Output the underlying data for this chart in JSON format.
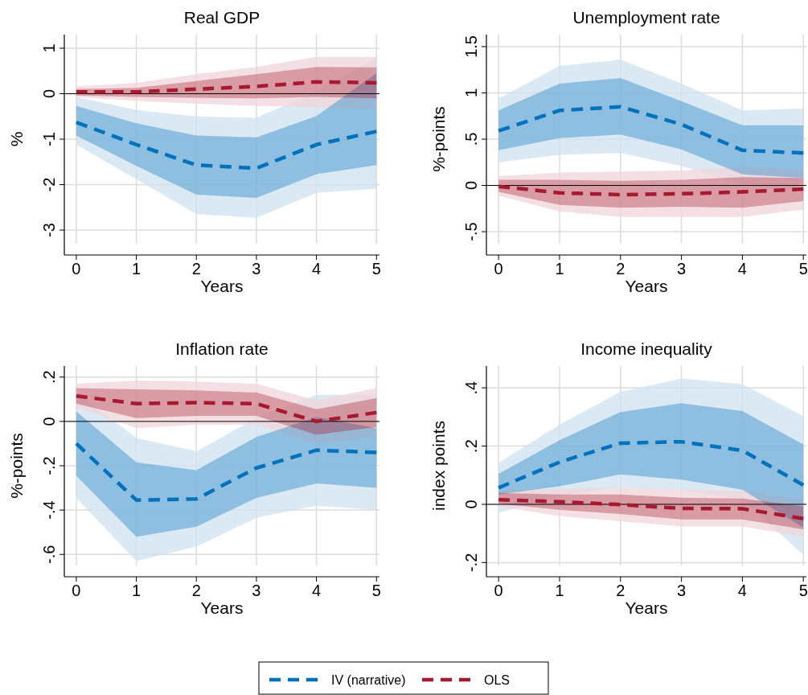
{
  "chart_data": [
    {
      "type": "line",
      "title": "Real GDP",
      "xlabel": "Years",
      "ylabel": "%",
      "x": [
        0,
        1,
        2,
        3,
        4,
        5
      ],
      "xlim": [
        -0.2,
        5.05
      ],
      "xticks": [
        0,
        1,
        2,
        3,
        4,
        5
      ],
      "ylim": [
        -3.3,
        1.3
      ],
      "yticks": [
        -3,
        -2,
        -1,
        0,
        1
      ],
      "grid": true,
      "legend": "bottom",
      "line_style": "dashed",
      "marker": "none",
      "ref_lines": [
        {
          "axis": "y",
          "value": 0,
          "color": "#000000"
        }
      ],
      "series": [
        {
          "type": "area",
          "color": "#cfe2f2",
          "values": [
            null,
            null,
            null,
            null,
            null,
            null
          ],
          "lower": [
            -1.12,
            -1.88,
            -2.65,
            -2.73,
            -2.18,
            -2.09
          ],
          "upper": [
            -0.07,
            -0.36,
            -0.5,
            -0.53,
            0.05,
            0.8
          ]
        },
        {
          "type": "area",
          "color": "#f0d5da",
          "values": [
            null,
            null,
            null,
            null,
            null,
            null
          ],
          "lower": [
            -0.07,
            -0.16,
            -0.22,
            -0.27,
            -0.3,
            -0.33
          ],
          "upper": [
            0.16,
            0.24,
            0.43,
            0.59,
            0.81,
            0.81
          ]
        },
        {
          "name": "IV (narrative)",
          "color": "#0072bd",
          "values": [
            -0.63,
            -1.12,
            -1.57,
            -1.64,
            -1.12,
            -0.83
          ],
          "lower": [
            -0.92,
            -1.59,
            -2.22,
            -2.29,
            -1.77,
            -1.57
          ],
          "upper": [
            -0.27,
            -0.65,
            -0.92,
            -0.96,
            -0.49,
            0.45
          ]
        },
        {
          "name": "OLS",
          "color": "#a6192e",
          "values": [
            0.04,
            0.04,
            0.1,
            0.16,
            0.26,
            0.24
          ],
          "lower": [
            -0.04,
            -0.07,
            -0.09,
            -0.1,
            -0.07,
            -0.1
          ],
          "upper": [
            0.1,
            0.13,
            0.28,
            0.43,
            0.59,
            0.58
          ]
        }
      ]
    },
    {
      "type": "line",
      "title": "Unemployment rate",
      "xlabel": "Years",
      "ylabel": "%-points",
      "x": [
        0,
        1,
        2,
        3,
        4,
        5
      ],
      "xlim": [
        -0.2,
        5.05
      ],
      "xticks": [
        0,
        1,
        2,
        3,
        4,
        5
      ],
      "ylim": [
        -0.63,
        1.63
      ],
      "yticks": [
        {
          "value": -0.5,
          "label": "-.5"
        },
        0,
        {
          "value": 0.5,
          "label": ".5"
        },
        1,
        1.5
      ],
      "grid": true,
      "line_style": "dashed",
      "marker": "none",
      "ref_lines": [
        {
          "axis": "y",
          "value": 0,
          "color": "#000000"
        }
      ],
      "series": [
        {
          "type": "area",
          "color": "#cfe2f2",
          "values": [
            null,
            null,
            null,
            null,
            null,
            null
          ],
          "lower": [
            0.25,
            0.33,
            0.35,
            0.21,
            0.0,
            -0.05
          ],
          "upper": [
            0.94,
            1.29,
            1.36,
            1.1,
            0.81,
            0.83
          ]
        },
        {
          "type": "area",
          "color": "#f0d5da",
          "values": [
            null,
            null,
            null,
            null,
            null,
            null
          ],
          "lower": [
            -0.11,
            -0.28,
            -0.34,
            -0.34,
            -0.34,
            -0.26
          ],
          "upper": [
            0.1,
            0.14,
            0.15,
            0.16,
            0.2,
            0.17
          ]
        },
        {
          "color": "#0072bd",
          "values": [
            0.59,
            0.81,
            0.85,
            0.66,
            0.38,
            0.35
          ],
          "lower": [
            0.38,
            0.51,
            0.55,
            0.39,
            0.12,
            0.08
          ],
          "upper": [
            0.81,
            1.1,
            1.16,
            0.91,
            0.65,
            0.65
          ]
        },
        {
          "color": "#a6192e",
          "values": [
            -0.01,
            -0.08,
            -0.1,
            -0.09,
            -0.07,
            -0.04
          ],
          "lower": [
            -0.07,
            -0.21,
            -0.24,
            -0.23,
            -0.24,
            -0.17
          ],
          "upper": [
            0.06,
            0.06,
            0.05,
            0.06,
            0.09,
            0.08
          ]
        }
      ]
    },
    {
      "type": "line",
      "title": "Inflation rate",
      "xlabel": "Years",
      "ylabel": "%-points",
      "x": [
        0,
        1,
        2,
        3,
        4,
        5
      ],
      "xlim": [
        -0.2,
        5.05
      ],
      "xticks": [
        0,
        1,
        2,
        3,
        4,
        5
      ],
      "ylim": [
        -0.65,
        0.25
      ],
      "yticks": [
        {
          "value": -0.6,
          "label": "-.6"
        },
        {
          "value": -0.4,
          "label": "-.4"
        },
        {
          "value": -0.2,
          "label": "-.2"
        },
        0,
        {
          "value": 0.2,
          "label": ".2"
        }
      ],
      "grid": true,
      "line_style": "dashed",
      "marker": "none",
      "ref_lines": [
        {
          "axis": "y",
          "value": 0,
          "color": "#000000"
        }
      ],
      "series": [
        {
          "type": "area",
          "color": "#cfe2f2",
          "values": [
            null,
            null,
            null,
            null,
            null,
            null
          ],
          "lower": [
            -0.345,
            -0.63,
            -0.565,
            -0.435,
            -0.38,
            -0.4
          ],
          "upper": [
            0.13,
            -0.075,
            -0.135,
            0.015,
            0.12,
            0.12
          ]
        },
        {
          "type": "area",
          "color": "#f0d5da",
          "values": [
            null,
            null,
            null,
            null,
            null,
            null
          ],
          "lower": [
            0.065,
            -0.03,
            -0.015,
            -0.015,
            -0.1,
            -0.07
          ],
          "upper": [
            0.17,
            0.185,
            0.18,
            0.17,
            0.095,
            0.15
          ]
        },
        {
          "color": "#0072bd",
          "values": [
            -0.1,
            -0.355,
            -0.35,
            -0.21,
            -0.13,
            -0.14
          ],
          "lower": [
            -0.245,
            -0.52,
            -0.475,
            -0.345,
            -0.28,
            -0.3
          ],
          "upper": [
            0.045,
            -0.185,
            -0.22,
            -0.07,
            0.02,
            -0.03
          ]
        },
        {
          "color": "#a6192e",
          "values": [
            0.115,
            0.08,
            0.085,
            0.08,
            0.0,
            0.04
          ],
          "lower": [
            0.08,
            0.015,
            0.025,
            0.025,
            -0.06,
            -0.025
          ],
          "upper": [
            0.15,
            0.145,
            0.14,
            0.13,
            0.055,
            0.105
          ]
        }
      ]
    },
    {
      "type": "line",
      "title": "Income inequality",
      "xlabel": "Years",
      "ylabel": "index points",
      "x": [
        0,
        1,
        2,
        3,
        4,
        5
      ],
      "xlim": [
        -0.2,
        5.05
      ],
      "xticks": [
        0,
        1,
        2,
        3,
        4,
        5
      ],
      "ylim": [
        -0.21,
        0.475
      ],
      "yticks": [
        {
          "value": -0.2,
          "label": "-.2"
        },
        0,
        {
          "value": 0.2,
          "label": ".2"
        },
        {
          "value": 0.4,
          "label": ".4"
        }
      ],
      "grid": true,
      "line_style": "dashed",
      "marker": "none",
      "ref_lines": [
        {
          "axis": "y",
          "value": 0,
          "color": "#000000"
        }
      ],
      "series": [
        {
          "type": "area",
          "color": "#cfe2f2",
          "values": [
            null,
            null,
            null,
            null,
            null,
            null
          ],
          "lower": [
            -0.03,
            0.03,
            0.057,
            0.048,
            0.016,
            -0.173
          ],
          "upper": [
            0.142,
            0.274,
            0.386,
            0.432,
            0.412,
            0.303
          ]
        },
        {
          "type": "area",
          "color": "#f0d5da",
          "values": [
            null,
            null,
            null,
            null,
            null,
            null
          ],
          "lower": [
            -0.007,
            -0.04,
            -0.058,
            -0.076,
            -0.076,
            -0.11
          ],
          "upper": [
            0.048,
            0.054,
            0.057,
            0.05,
            0.046,
            0.016
          ]
        },
        {
          "color": "#0072bd",
          "values": [
            0.057,
            0.145,
            0.21,
            0.215,
            0.185,
            0.066
          ],
          "lower": [
            0.034,
            0.062,
            0.103,
            0.085,
            0.05,
            -0.08
          ],
          "upper": [
            0.105,
            0.22,
            0.317,
            0.347,
            0.32,
            0.206
          ]
        },
        {
          "color": "#a6192e",
          "values": [
            0.016,
            0.009,
            -0.001,
            -0.014,
            -0.015,
            -0.049
          ],
          "lower": [
            0.002,
            -0.019,
            -0.033,
            -0.052,
            -0.052,
            -0.086
          ],
          "upper": [
            0.039,
            0.034,
            0.034,
            0.023,
            0.02,
            -0.007
          ]
        }
      ]
    }
  ]
}
